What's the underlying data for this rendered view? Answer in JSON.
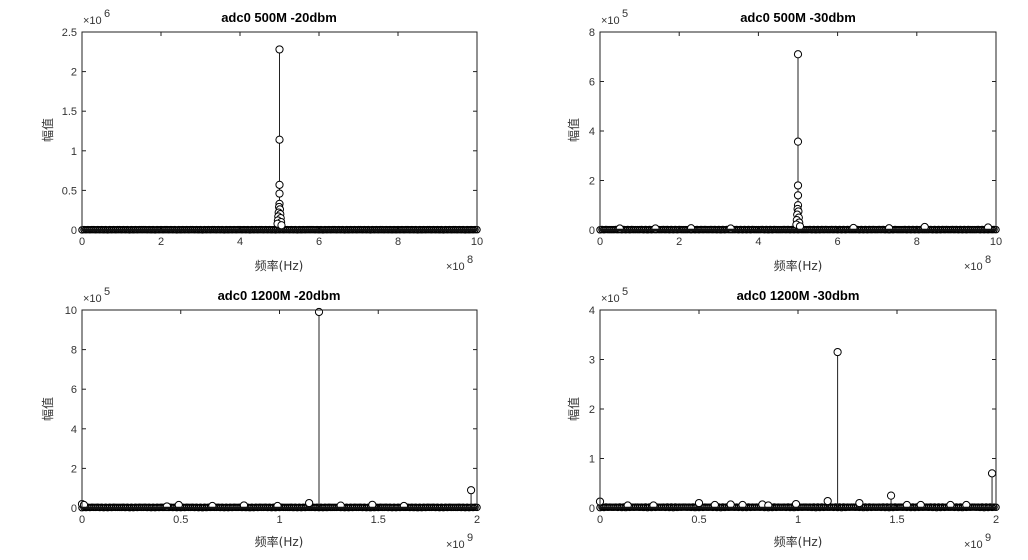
{
  "chart_data": [
    {
      "type": "stem",
      "title": "adc0 500M -20dbm",
      "xlabel": "频率(Hz)",
      "ylabel": "幅值",
      "x_multiplier": "×10",
      "x_exponent": "8",
      "y_multiplier": "×10",
      "y_exponent": "6",
      "xlim": [
        0,
        10
      ],
      "ylim": [
        0,
        2.5
      ],
      "xticks": [
        "0",
        "2",
        "4",
        "6",
        "8",
        "10"
      ],
      "yticks": [
        "0",
        "0.5",
        "1",
        "1.5",
        "2",
        "2.5"
      ],
      "baseline_noise": 0.005,
      "x_scale": 100000000,
      "y_scale": 1000000,
      "peaks": [
        {
          "x": 5.0,
          "y": 2.28
        },
        {
          "x": 5.0,
          "y": 1.14
        },
        {
          "x": 5.0,
          "y": 0.57
        },
        {
          "x": 5.0,
          "y": 0.46
        },
        {
          "x": 5.0,
          "y": 0.33
        },
        {
          "x": 4.99,
          "y": 0.29
        },
        {
          "x": 5.01,
          "y": 0.26
        },
        {
          "x": 4.98,
          "y": 0.22
        },
        {
          "x": 5.02,
          "y": 0.2
        },
        {
          "x": 4.97,
          "y": 0.17
        },
        {
          "x": 5.03,
          "y": 0.15
        },
        {
          "x": 4.96,
          "y": 0.12
        },
        {
          "x": 5.04,
          "y": 0.1
        },
        {
          "x": 4.95,
          "y": 0.08
        },
        {
          "x": 5.05,
          "y": 0.06
        }
      ]
    },
    {
      "type": "stem",
      "title": "adc0 500M -30dbm",
      "xlabel": "频率(Hz)",
      "ylabel": "幅值",
      "x_multiplier": "×10",
      "x_exponent": "8",
      "y_multiplier": "×10",
      "y_exponent": "5",
      "xlim": [
        0,
        10
      ],
      "ylim": [
        0,
        8
      ],
      "xticks": [
        "0",
        "2",
        "4",
        "6",
        "8",
        "10"
      ],
      "yticks": [
        "0",
        "2",
        "4",
        "6",
        "8"
      ],
      "baseline_noise": 0.02,
      "x_scale": 100000000,
      "y_scale": 100000,
      "peaks": [
        {
          "x": 5.0,
          "y": 7.1
        },
        {
          "x": 5.0,
          "y": 3.57
        },
        {
          "x": 5.0,
          "y": 1.8
        },
        {
          "x": 5.0,
          "y": 1.4
        },
        {
          "x": 5.0,
          "y": 1.0
        },
        {
          "x": 4.99,
          "y": 0.85
        },
        {
          "x": 5.01,
          "y": 0.75
        },
        {
          "x": 4.98,
          "y": 0.62
        },
        {
          "x": 5.02,
          "y": 0.5
        },
        {
          "x": 4.97,
          "y": 0.4
        },
        {
          "x": 5.03,
          "y": 0.3
        },
        {
          "x": 4.96,
          "y": 0.22
        },
        {
          "x": 5.05,
          "y": 0.15
        },
        {
          "x": 8.2,
          "y": 0.12
        },
        {
          "x": 9.8,
          "y": 0.1
        },
        {
          "x": 6.4,
          "y": 0.08
        },
        {
          "x": 2.3,
          "y": 0.07
        },
        {
          "x": 1.4,
          "y": 0.06
        },
        {
          "x": 0.5,
          "y": 0.06
        },
        {
          "x": 7.3,
          "y": 0.07
        },
        {
          "x": 3.3,
          "y": 0.06
        }
      ]
    },
    {
      "type": "stem",
      "title": "adc0 1200M -20dbm",
      "xlabel": "频率(Hz)",
      "ylabel": "幅值",
      "x_multiplier": "×10",
      "x_exponent": "9",
      "y_multiplier": "×10",
      "y_exponent": "5",
      "xlim": [
        0,
        2
      ],
      "ylim": [
        0,
        10
      ],
      "xticks": [
        "0",
        "0.5",
        "1",
        "1.5",
        "2"
      ],
      "yticks": [
        "0",
        "2",
        "4",
        "6",
        "8",
        "10"
      ],
      "baseline_noise": 0.04,
      "x_scale": 1000000000,
      "y_scale": 100000,
      "peaks": [
        {
          "x": 1.2,
          "y": 9.9
        },
        {
          "x": 1.97,
          "y": 0.9
        },
        {
          "x": 1.15,
          "y": 0.25
        },
        {
          "x": 0.0,
          "y": 0.2
        },
        {
          "x": 0.01,
          "y": 0.15
        },
        {
          "x": 0.49,
          "y": 0.15
        },
        {
          "x": 0.82,
          "y": 0.13
        },
        {
          "x": 1.31,
          "y": 0.12
        },
        {
          "x": 1.47,
          "y": 0.16
        },
        {
          "x": 0.66,
          "y": 0.1
        },
        {
          "x": 0.99,
          "y": 0.1
        },
        {
          "x": 0.43,
          "y": 0.08
        },
        {
          "x": 1.63,
          "y": 0.1
        }
      ]
    },
    {
      "type": "stem",
      "title": "adc0 1200M -30dbm",
      "xlabel": "频率(Hz)",
      "ylabel": "幅值",
      "x_multiplier": "×10",
      "x_exponent": "9",
      "y_multiplier": "×10",
      "y_exponent": "5",
      "xlim": [
        0,
        2
      ],
      "ylim": [
        0,
        4
      ],
      "xticks": [
        "0",
        "0.5",
        "1",
        "1.5",
        "2"
      ],
      "yticks": [
        "0",
        "1",
        "2",
        "3",
        "4"
      ],
      "baseline_noise": 0.02,
      "x_scale": 1000000000,
      "y_scale": 100000,
      "peaks": [
        {
          "x": 1.2,
          "y": 3.15
        },
        {
          "x": 1.98,
          "y": 0.7
        },
        {
          "x": 1.47,
          "y": 0.25
        },
        {
          "x": 1.15,
          "y": 0.14
        },
        {
          "x": 0.0,
          "y": 0.13
        },
        {
          "x": 0.5,
          "y": 0.1
        },
        {
          "x": 1.31,
          "y": 0.1
        },
        {
          "x": 0.99,
          "y": 0.08
        },
        {
          "x": 0.82,
          "y": 0.07
        },
        {
          "x": 0.66,
          "y": 0.07
        },
        {
          "x": 0.72,
          "y": 0.06
        },
        {
          "x": 0.58,
          "y": 0.06
        },
        {
          "x": 0.14,
          "y": 0.05
        },
        {
          "x": 0.27,
          "y": 0.05
        },
        {
          "x": 0.85,
          "y": 0.05
        },
        {
          "x": 1.55,
          "y": 0.06
        },
        {
          "x": 1.62,
          "y": 0.06
        },
        {
          "x": 1.77,
          "y": 0.06
        },
        {
          "x": 1.85,
          "y": 0.06
        }
      ]
    }
  ]
}
